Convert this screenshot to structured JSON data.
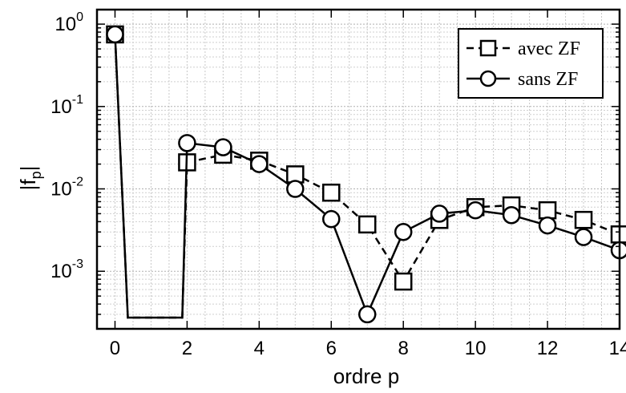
{
  "chart_data": {
    "type": "line",
    "xlabel": "ordre p",
    "ylabel": "|f_p|",
    "xlim": [
      -0.5,
      14
    ],
    "ylim": [
      0.0002,
      1.5
    ],
    "yscale": "log",
    "grid": true,
    "legend_position": "top-right",
    "x_ticks": [
      0,
      2,
      4,
      6,
      8,
      10,
      12,
      14
    ],
    "y_ticks": [
      {
        "value": 1,
        "base": "10",
        "exp": "0"
      },
      {
        "value": 0.1,
        "base": "10",
        "exp": "-1"
      },
      {
        "value": 0.01,
        "base": "10",
        "exp": "-2"
      },
      {
        "value": 0.001,
        "base": "10",
        "exp": "-3"
      }
    ],
    "series": [
      {
        "name": "avec ZF",
        "marker": "square",
        "dash": true,
        "color": "#000000",
        "x": [
          0,
          2,
          3,
          4,
          5,
          6,
          7,
          8,
          9,
          10,
          11,
          12,
          13,
          14
        ],
        "y": [
          0.75,
          0.021,
          0.026,
          0.022,
          0.015,
          0.009,
          0.0037,
          0.00075,
          0.0042,
          0.006,
          0.0063,
          0.0055,
          0.0042,
          0.0028
        ]
      },
      {
        "name": "sans ZF",
        "marker": "circle",
        "dash": false,
        "color": "#000000",
        "x": [
          0,
          2,
          3,
          4,
          5,
          6,
          7,
          8,
          9,
          10,
          11,
          12,
          13,
          14
        ],
        "y": [
          0.75,
          0.036,
          0.032,
          0.02,
          0.01,
          0.0043,
          0.0003,
          0.003,
          0.005,
          0.0055,
          0.0048,
          0.0036,
          0.0026,
          0.0018
        ]
      }
    ]
  }
}
